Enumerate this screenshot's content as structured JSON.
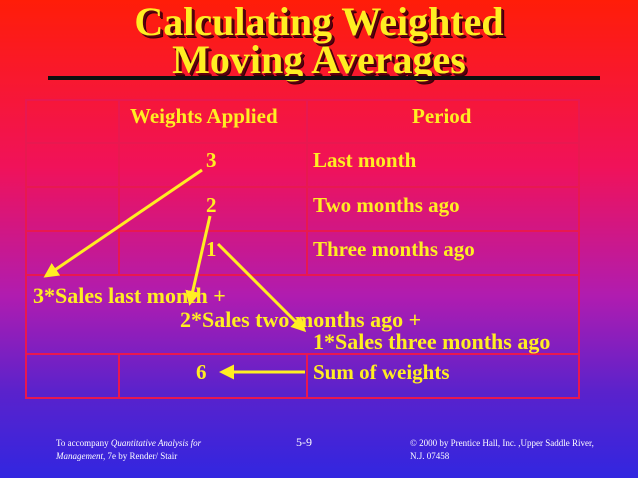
{
  "slide": {
    "title_line1": "Calculating Weighted",
    "title_line2": "Moving Averages"
  },
  "table": {
    "headers": [
      "Weights Applied",
      "Period"
    ],
    "rows": [
      {
        "weight": "3",
        "period": "Last month"
      },
      {
        "weight": "2",
        "period": "Two months ago"
      },
      {
        "weight": "1",
        "period": "Three months ago"
      }
    ],
    "formula_line1": "3*Sales last month +",
    "formula_line2": "2*Sales two months ago +",
    "formula_line3": "1*Sales three months ago",
    "sum_weight": "6",
    "sum_label": "Sum of weights"
  },
  "footer": {
    "left_prefix": "To accompany ",
    "left_italic": "Quantitative Analysis for",
    "left_italic2": "Management",
    "left_suffix": ", 7e by Render/ Stair",
    "page": "5-9",
    "right_line1": "© 2000 by Prentice Hall, Inc. ,Upper Saddle River,",
    "right_line2": "N.J. 07458"
  },
  "colors": {
    "text": "#ffee22",
    "grid": "#e81850",
    "arrow": "#ffee22"
  }
}
